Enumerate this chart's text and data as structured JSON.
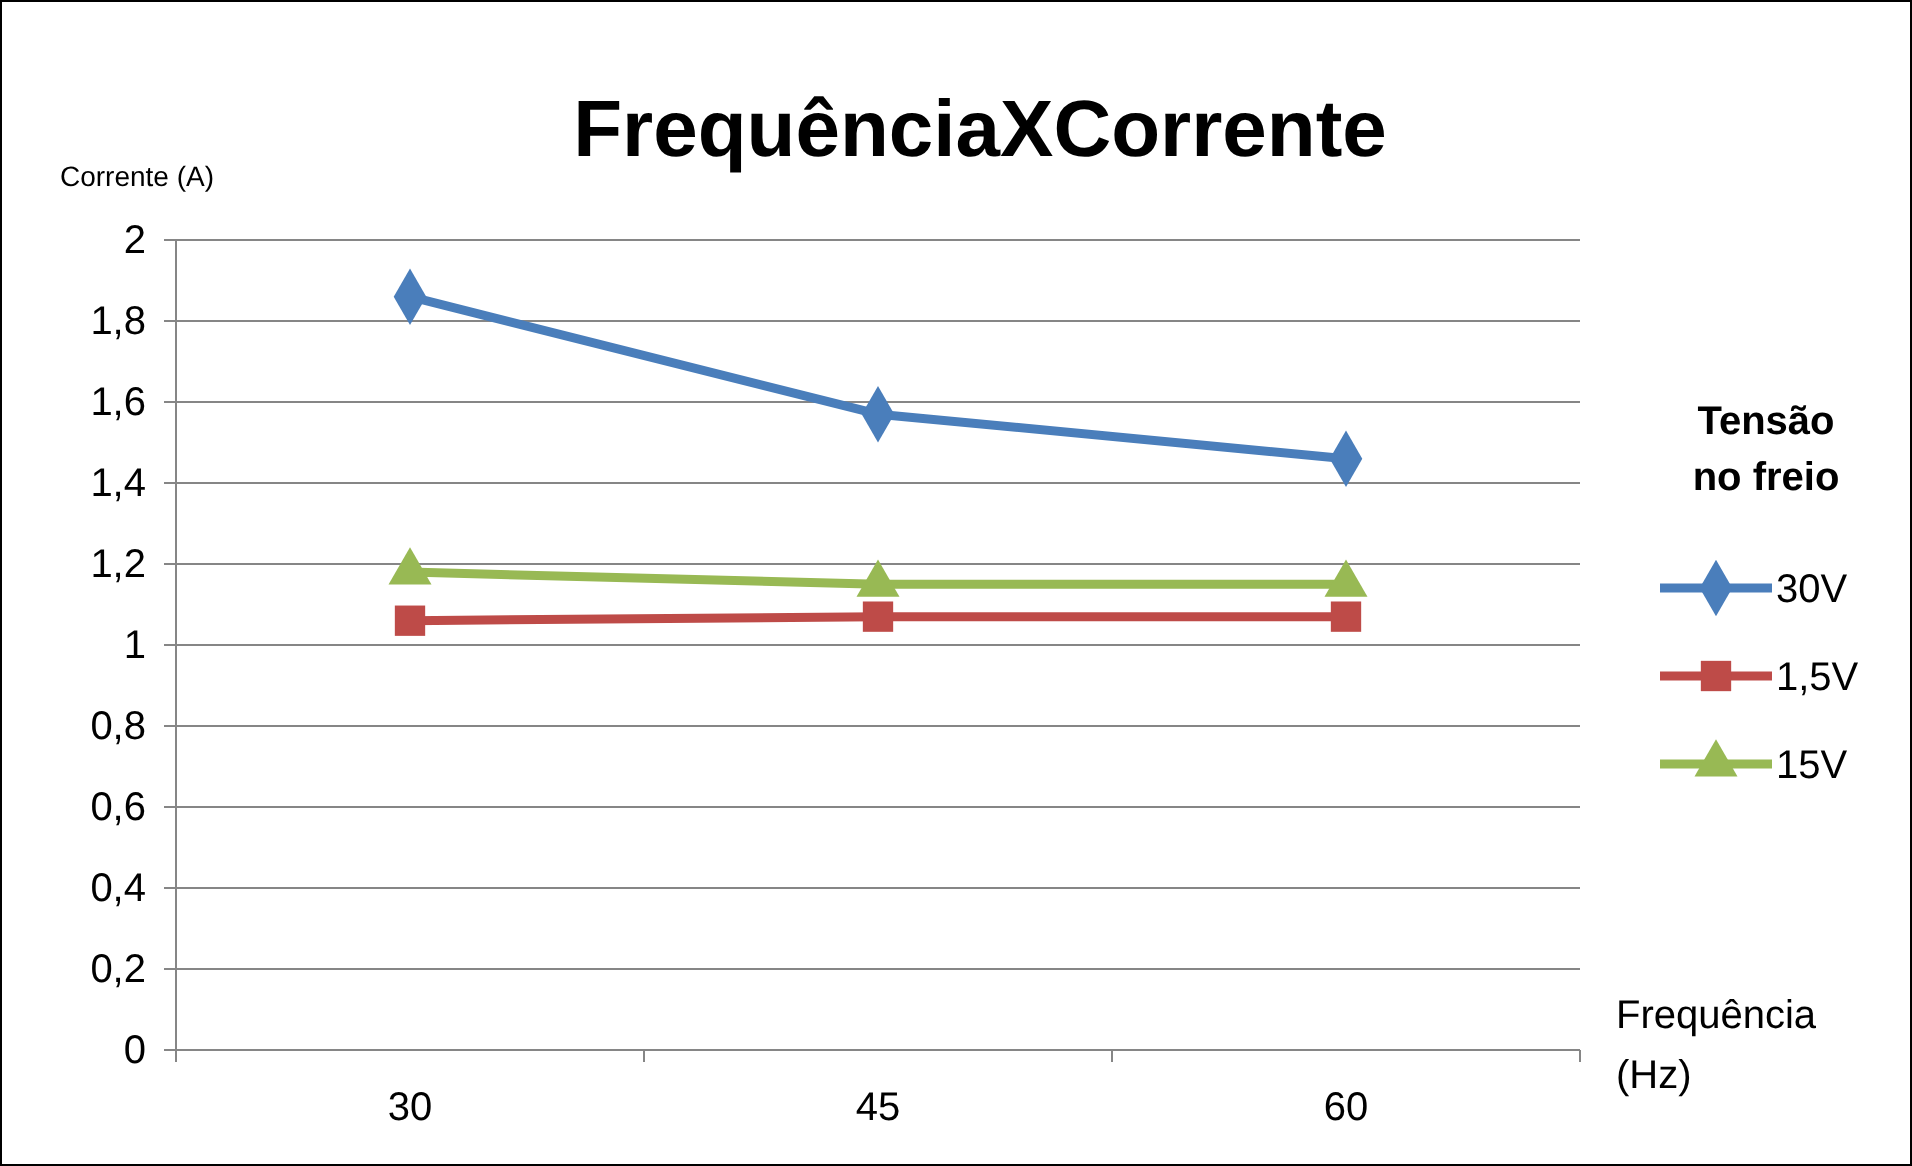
{
  "chart_data": {
    "type": "line",
    "title": "FrequênciaXCorrente",
    "ylabel": "Corrente (A)",
    "xlabel": "Frequência (Hz)",
    "legend_title": "Tensão no freio",
    "categories": [
      "30",
      "45",
      "60"
    ],
    "series": [
      {
        "name": "30V",
        "color": "#4a7ebb",
        "marker": "diamond",
        "values": [
          1.86,
          1.57,
          1.46
        ]
      },
      {
        "name": "1,5V",
        "color": "#be4b48",
        "marker": "square",
        "values": [
          1.06,
          1.07,
          1.07
        ]
      },
      {
        "name": "15V",
        "color": "#98b954",
        "marker": "triangle",
        "values": [
          1.18,
          1.15,
          1.15
        ]
      }
    ],
    "ylim": [
      0,
      2
    ],
    "yticks": [
      {
        "value": 0,
        "label": "0"
      },
      {
        "value": 0.2,
        "label": "0,2"
      },
      {
        "value": 0.4,
        "label": "0,4"
      },
      {
        "value": 0.6,
        "label": "0,6"
      },
      {
        "value": 0.8,
        "label": "0,8"
      },
      {
        "value": 1,
        "label": "1"
      },
      {
        "value": 1.2,
        "label": "1,2"
      },
      {
        "value": 1.4,
        "label": "1,4"
      },
      {
        "value": 1.6,
        "label": "1,6"
      },
      {
        "value": 1.8,
        "label": "1,8"
      },
      {
        "value": 2,
        "label": "2"
      }
    ],
    "grid": "y",
    "legend": "right",
    "line_style": "solid"
  }
}
